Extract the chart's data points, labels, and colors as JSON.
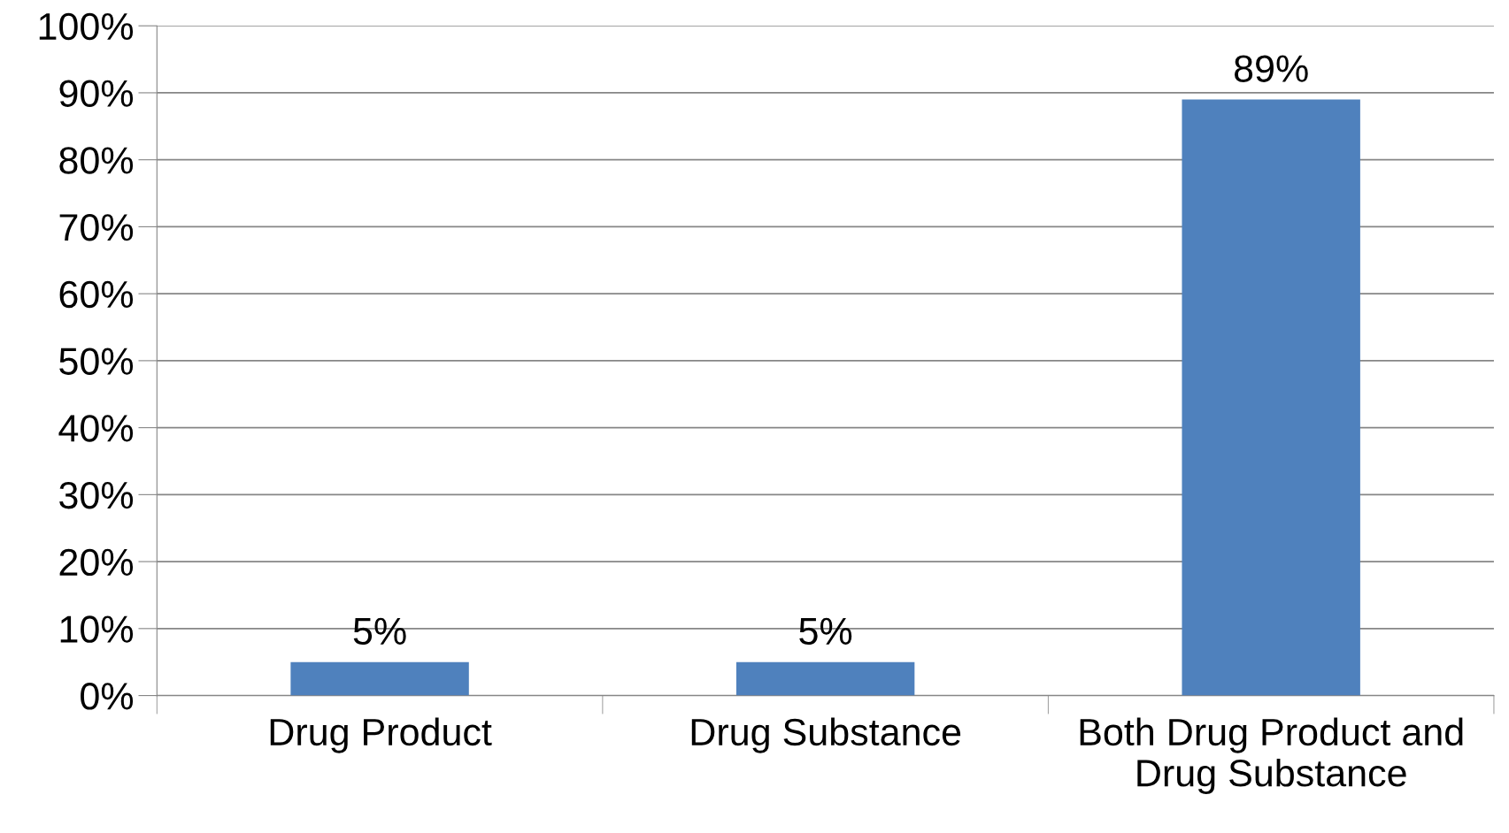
{
  "chart_data": {
    "type": "bar",
    "categories": [
      "Drug Product",
      "Drug Substance",
      "Both Drug Product and\nDrug Substance"
    ],
    "values": [
      5,
      5,
      89
    ],
    "value_labels": [
      "5%",
      "5%",
      "89%"
    ],
    "color": "#4f81bd",
    "ylim": [
      0,
      100
    ],
    "yticks": [
      {
        "value": 0,
        "label": "0%"
      },
      {
        "value": 10,
        "label": "10%"
      },
      {
        "value": 20,
        "label": "20%"
      },
      {
        "value": 30,
        "label": "30%"
      },
      {
        "value": 40,
        "label": "40%"
      },
      {
        "value": 50,
        "label": "50%"
      },
      {
        "value": 60,
        "label": "60%"
      },
      {
        "value": 70,
        "label": "70%"
      },
      {
        "value": 80,
        "label": "80%"
      },
      {
        "value": 90,
        "label": "90%"
      },
      {
        "value": 100,
        "label": "100%"
      }
    ],
    "grid": "y",
    "legend": false
  }
}
